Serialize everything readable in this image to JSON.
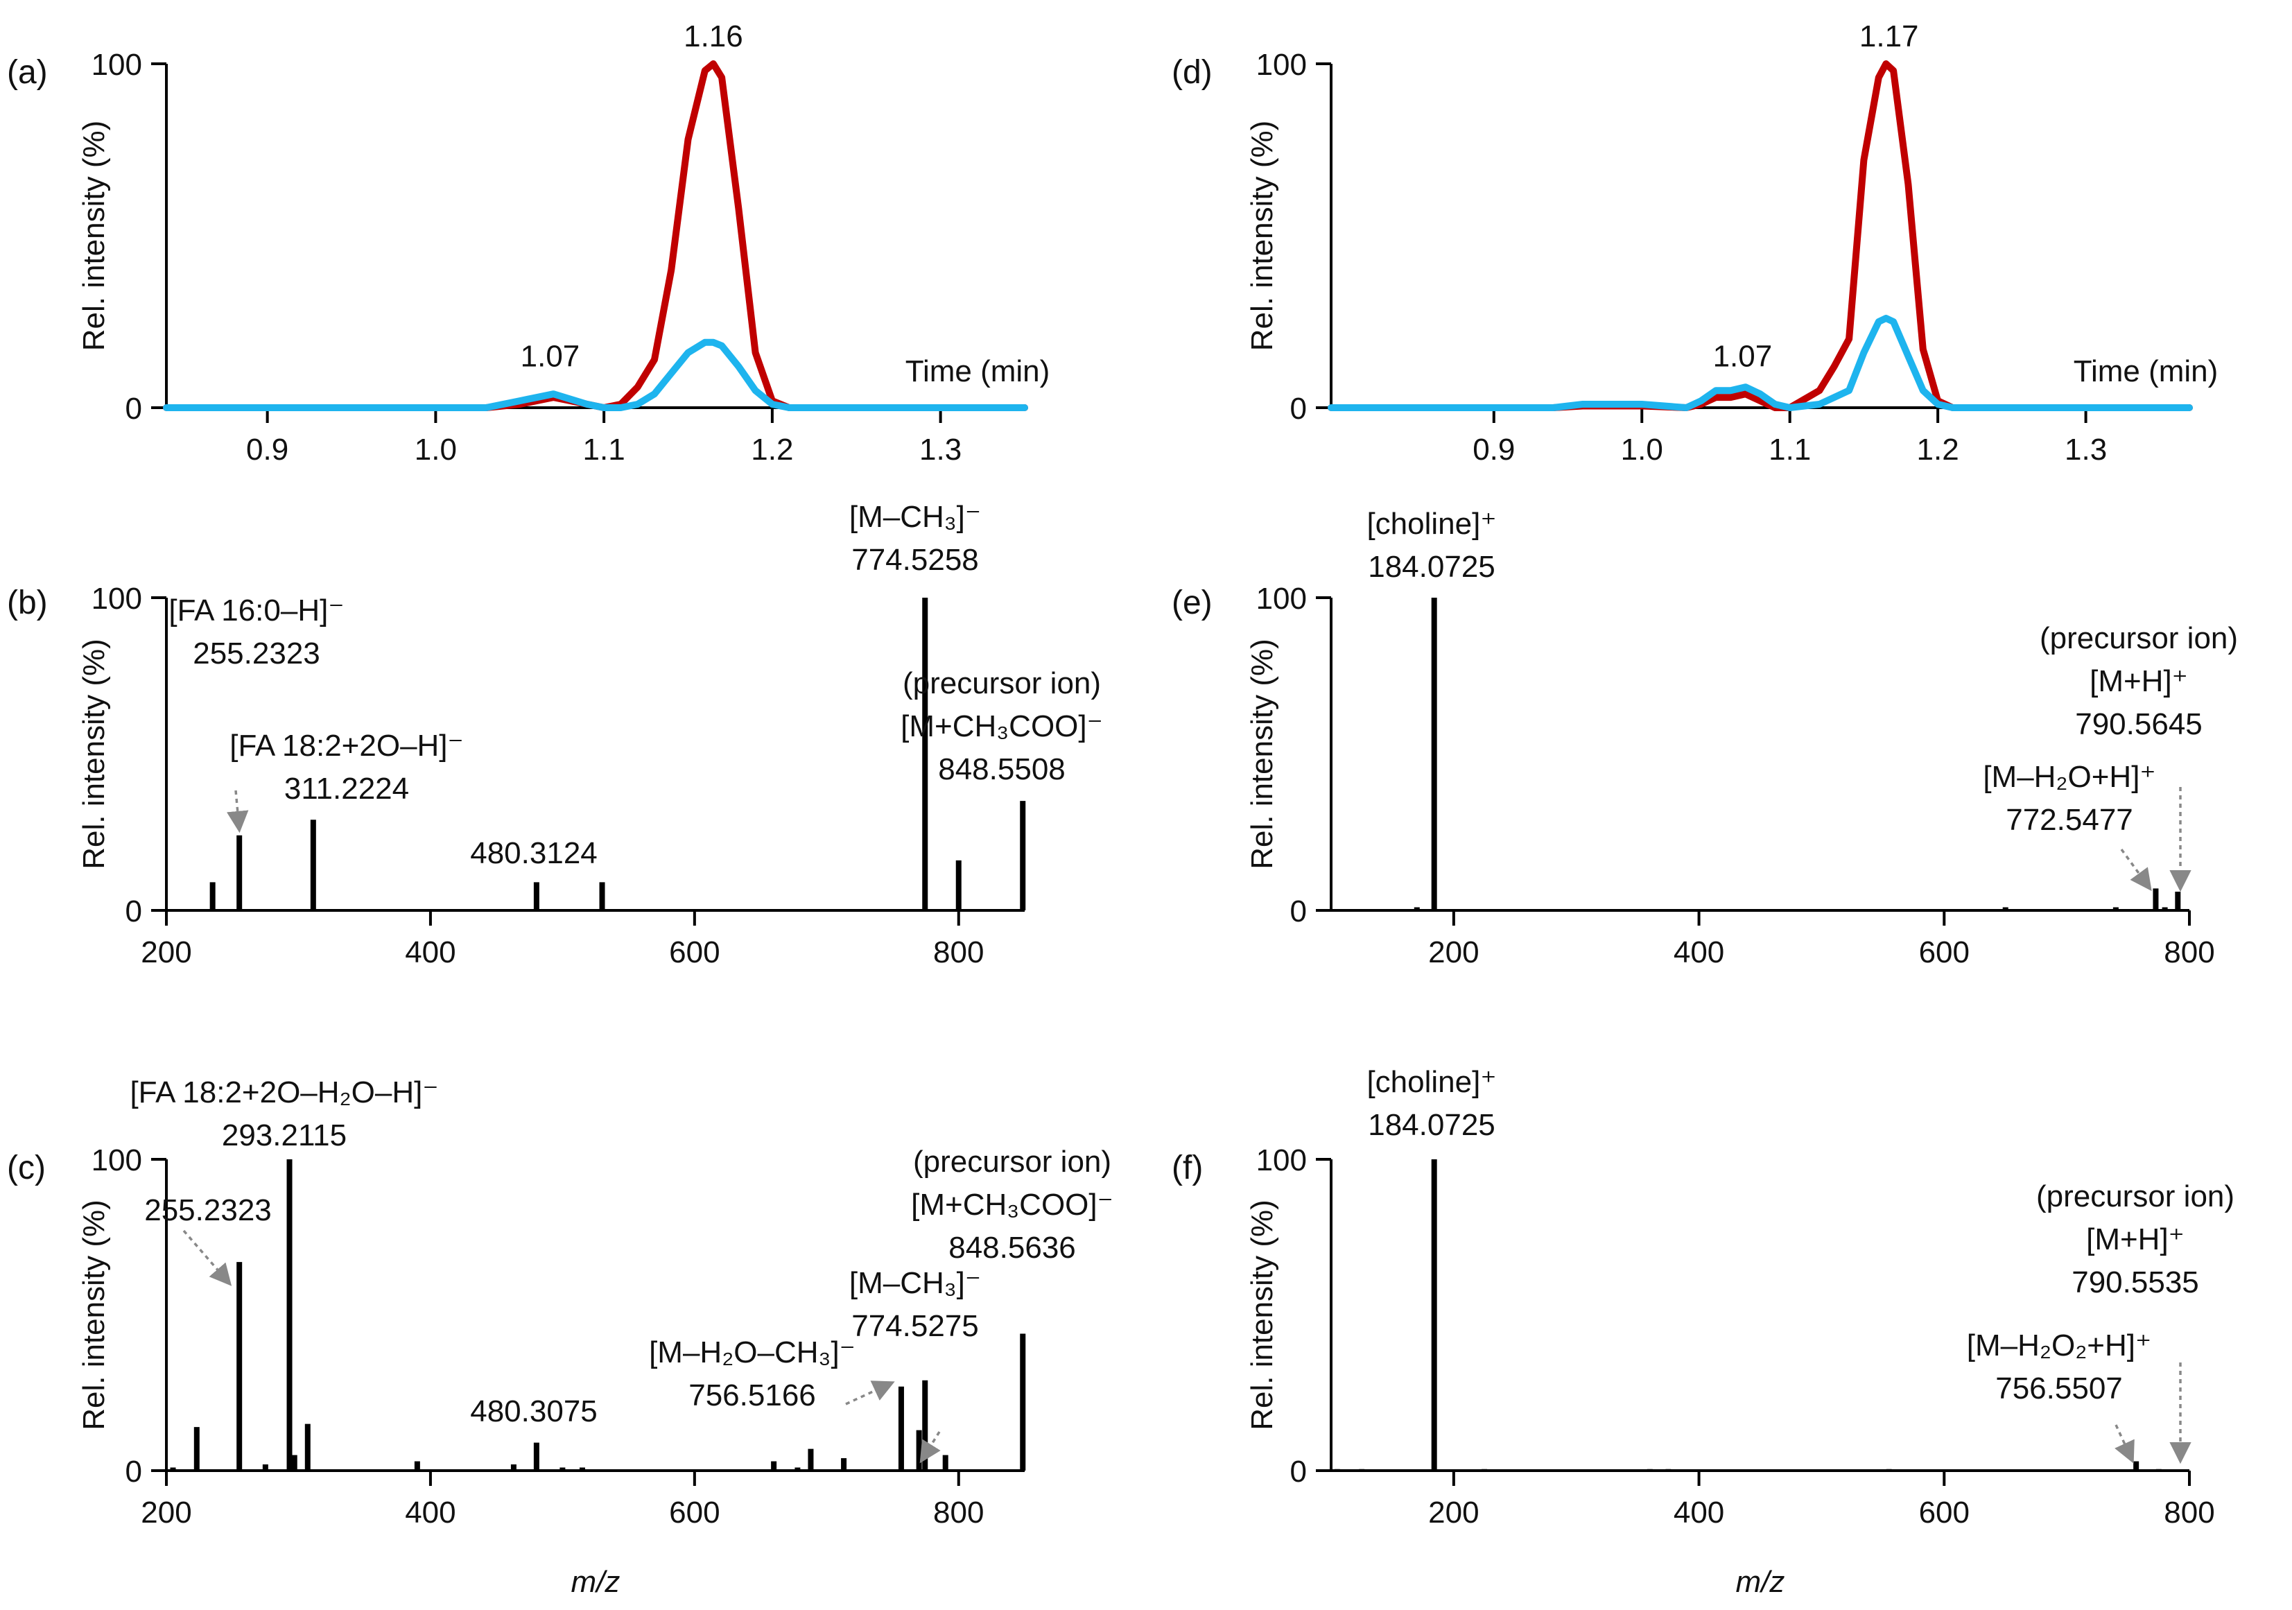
{
  "colors": {
    "series_a": "#c00000",
    "series_b": "#1eb4ee",
    "ink": "#000000",
    "arrow": "#888888"
  },
  "chart_data": [
    {
      "panel": "(a)",
      "type": "line",
      "title": "",
      "xlabel": "Time (min)",
      "ylabel": "Rel. intensity (%)",
      "xlim": [
        0.84,
        1.35
      ],
      "ylim": [
        0,
        100
      ],
      "xticks": [
        "0.9",
        "1.0",
        "1.1",
        "1.2",
        "1.3"
      ],
      "yticks": [
        "0",
        "100"
      ],
      "series": [
        {
          "name": "red",
          "x": [
            0.84,
            1.03,
            1.05,
            1.07,
            1.09,
            1.1,
            1.11,
            1.12,
            1.13,
            1.14,
            1.15,
            1.16,
            1.165,
            1.17,
            1.18,
            1.19,
            1.2,
            1.21,
            1.35
          ],
          "values": [
            0,
            0,
            1,
            3,
            1,
            0,
            1,
            6,
            14,
            40,
            78,
            98,
            100,
            96,
            58,
            16,
            2,
            0,
            0
          ]
        },
        {
          "name": "blue",
          "x": [
            0.84,
            1.03,
            1.05,
            1.07,
            1.09,
            1.1,
            1.11,
            1.12,
            1.13,
            1.14,
            1.15,
            1.16,
            1.165,
            1.17,
            1.18,
            1.19,
            1.2,
            1.21,
            1.35
          ],
          "values": [
            0,
            0,
            2,
            4,
            1,
            0,
            0,
            1,
            4,
            10,
            16,
            19,
            19,
            18,
            12,
            5,
            1,
            0,
            0
          ]
        }
      ],
      "annotations": [
        "1.16",
        "1.07"
      ]
    },
    {
      "panel": "(b)",
      "type": "bar",
      "xlabel": "",
      "ylabel": "Rel. intensity (%)",
      "xlim": [
        200,
        850
      ],
      "ylim": [
        0,
        100
      ],
      "xticks": [
        "200",
        "400",
        "600",
        "800"
      ],
      "yticks": [
        "0",
        "100"
      ],
      "x": [
        235,
        255.2323,
        311.2224,
        480.3124,
        530,
        774.5258,
        800,
        848.5508
      ],
      "values": [
        9,
        24,
        29,
        9,
        9,
        100,
        16,
        35
      ],
      "labels": [
        {
          "lines": [
            "[FA 16:0–H]⁻",
            "255.2323"
          ],
          "mz": 255.2323
        },
        {
          "lines": [
            "[FA 18:2+2O–H]⁻",
            "311.2224"
          ],
          "mz": 311.2224
        },
        {
          "lines": [
            "480.3124"
          ],
          "mz": 480.3124
        },
        {
          "lines": [
            "[M–CH₃]⁻",
            "774.5258"
          ],
          "mz": 774.5258
        },
        {
          "lines": [
            "(precursor ion)",
            "[M+CH₃COO]⁻",
            "848.5508"
          ],
          "mz": 848.5508
        }
      ]
    },
    {
      "panel": "(c)",
      "type": "bar",
      "xlabel": "m/z",
      "ylabel": "Rel. intensity (%)",
      "xlim": [
        200,
        850
      ],
      "ylim": [
        0,
        100
      ],
      "xticks": [
        "200",
        "400",
        "600",
        "800"
      ],
      "yticks": [
        "0",
        "100"
      ],
      "x": [
        205,
        223,
        255.2323,
        275,
        293.2115,
        297,
        307,
        390,
        463,
        480.3075,
        500,
        515,
        660,
        678,
        688,
        713,
        756.5166,
        770,
        774.5275,
        790,
        848.5636
      ],
      "values": [
        1,
        14,
        67,
        2,
        100,
        5,
        15,
        3,
        2,
        9,
        1,
        1,
        3,
        1,
        7,
        4,
        27,
        13,
        29,
        5,
        44
      ],
      "labels": [
        {
          "lines": [
            "255.2323"
          ],
          "mz": 255.2323
        },
        {
          "lines": [
            "[FA 18:2+2O–H₂O–H]⁻",
            "293.2115"
          ],
          "mz": 293.2115
        },
        {
          "lines": [
            "480.3075"
          ],
          "mz": 480.3075
        },
        {
          "lines": [
            "[M–H₂O–CH₃]⁻",
            "756.5166"
          ],
          "mz": 756.5166
        },
        {
          "lines": [
            "[M–CH₃]⁻",
            "774.5275"
          ],
          "mz": 774.5275
        },
        {
          "lines": [
            "(precursor ion)",
            "[M+CH₃COO]⁻",
            "848.5636"
          ],
          "mz": 848.5636
        }
      ]
    },
    {
      "panel": "(d)",
      "type": "line",
      "xlabel": "Time (min)",
      "ylabel": "Rel. intensity (%)",
      "xlim": [
        0.79,
        1.37
      ],
      "ylim": [
        0,
        100
      ],
      "xticks": [
        "0.9",
        "1.0",
        "1.1",
        "1.2",
        "1.3"
      ],
      "yticks": [
        "0",
        "100"
      ],
      "series": [
        {
          "name": "red",
          "x": [
            0.79,
            0.94,
            0.96,
            0.98,
            1.0,
            1.03,
            1.04,
            1.05,
            1.06,
            1.07,
            1.08,
            1.09,
            1.1,
            1.12,
            1.13,
            1.14,
            1.15,
            1.16,
            1.165,
            1.17,
            1.18,
            1.19,
            1.2,
            1.21,
            1.37
          ],
          "values": [
            0,
            0,
            0.5,
            0.5,
            0.5,
            0,
            1,
            3,
            3,
            4,
            2,
            0,
            0,
            5,
            12,
            20,
            72,
            96,
            100,
            98,
            65,
            17,
            2,
            0,
            0
          ]
        },
        {
          "name": "blue",
          "x": [
            0.79,
            0.94,
            0.96,
            0.98,
            1.0,
            1.03,
            1.04,
            1.05,
            1.06,
            1.07,
            1.08,
            1.09,
            1.1,
            1.12,
            1.13,
            1.14,
            1.15,
            1.16,
            1.165,
            1.17,
            1.18,
            1.19,
            1.2,
            1.21,
            1.37
          ],
          "values": [
            0,
            0,
            1,
            1,
            1,
            0,
            2,
            5,
            5,
            6,
            4,
            1,
            0,
            1,
            3,
            5,
            16,
            25,
            26,
            25,
            15,
            5,
            1,
            0,
            0
          ]
        }
      ],
      "annotations": [
        "1.17",
        "1.07"
      ]
    },
    {
      "panel": "(e)",
      "type": "bar",
      "xlabel": "",
      "ylabel": "Rel. intensity (%)",
      "xlim": [
        100,
        800
      ],
      "ylim": [
        0,
        100
      ],
      "xticks": [
        "200",
        "400",
        "600",
        "800"
      ],
      "yticks": [
        "0",
        "100"
      ],
      "x": [
        170,
        184.0725,
        650,
        740,
        772.5477,
        780,
        790.5645
      ],
      "values": [
        1,
        100,
        1,
        1,
        7,
        1,
        6
      ],
      "labels": [
        {
          "lines": [
            "[choline]⁺",
            "184.0725"
          ],
          "mz": 184.0725
        },
        {
          "lines": [
            "[M–H₂O+H]⁺",
            "772.5477"
          ],
          "mz": 772.5477
        },
        {
          "lines": [
            "(precursor ion)",
            "[M+H]⁺",
            "790.5645"
          ],
          "mz": 790.5645
        }
      ]
    },
    {
      "panel": "(f)",
      "type": "bar",
      "xlabel": "m/z",
      "ylabel": "Rel. intensity (%)",
      "xlim": [
        100,
        800
      ],
      "ylim": [
        0,
        100
      ],
      "xticks": [
        "200",
        "400",
        "600",
        "800"
      ],
      "yticks": [
        "0",
        "100"
      ],
      "x": [
        105,
        125,
        184.0725,
        225,
        360,
        375,
        555,
        756.5507,
        775
      ],
      "values": [
        0.5,
        0.5,
        100,
        0.5,
        0.5,
        0.5,
        0.5,
        3,
        0.5
      ],
      "labels": [
        {
          "lines": [
            "[choline]⁺",
            "184.0725"
          ],
          "mz": 184.0725
        },
        {
          "lines": [
            "[M–H₂O₂+H]⁺",
            "756.5507"
          ],
          "mz": 756.5507
        },
        {
          "lines": [
            "(precursor ion)",
            "[M+H]⁺",
            "790.5535"
          ],
          "mz": 790.5535
        }
      ]
    }
  ]
}
